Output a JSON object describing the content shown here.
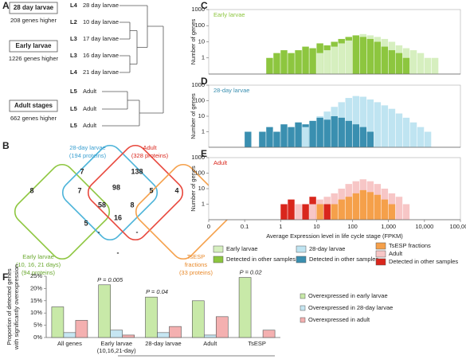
{
  "panel_a": {
    "label": "A",
    "groups": [
      {
        "title": "28 day larvae",
        "note": "208 genes higher"
      },
      {
        "title": "Early larvae",
        "note": "1226 genes higher"
      },
      {
        "title": "Adult stages",
        "note": "662 genes higher"
      }
    ],
    "leaves": [
      {
        "level": "L4",
        "name": "28 day larvae"
      },
      {
        "level": "L2",
        "name": "10 day larvae"
      },
      {
        "level": "L3",
        "name": "17 day larvae"
      },
      {
        "level": "L3",
        "name": "16 day larvae"
      },
      {
        "level": "L4",
        "name": "21 day larvae"
      },
      {
        "level": "L5",
        "name": "Adult"
      },
      {
        "level": "L5",
        "name": "Adult"
      },
      {
        "level": "L5",
        "name": "Adult"
      }
    ]
  },
  "panel_b": {
    "label": "B",
    "sets": [
      {
        "lines": [
          "28-day larvae",
          "(194 proteins)"
        ]
      },
      {
        "lines": [
          "Adult",
          "(328 proteins)"
        ]
      },
      {
        "lines": [
          "Early larvae",
          "(10, 16, 21 days)",
          "(94 proteins)"
        ]
      },
      {
        "lines": [
          "TsESP",
          "fractions",
          "(33 proteins)"
        ]
      }
    ],
    "regions": [
      8,
      7,
      138,
      4,
      7,
      98,
      5,
      58,
      8,
      5,
      16,
      "-",
      "-",
      "-"
    ]
  },
  "chart_data": [
    {
      "type": "histogram",
      "panel": "C",
      "title": "Early larvae",
      "title_color": "#8dc63f",
      "ylabel": "Number of genes",
      "xscale": "log",
      "yscale": "log",
      "xlim": [
        0,
        100000
      ],
      "ylim": [
        0.1,
        1000
      ],
      "yticks": [
        1,
        10,
        100,
        1000
      ],
      "bins": [
        0.1,
        0.158,
        0.251,
        0.398,
        0.631,
        1,
        1.585,
        2.512,
        3.981,
        6.31,
        10,
        15.85,
        25.12,
        39.81,
        63.1,
        100,
        158.5,
        251.2,
        398.1,
        631,
        1000,
        1585,
        2512,
        3981,
        6310,
        10000,
        15849,
        25119,
        39811,
        63096,
        100000
      ],
      "series": [
        {
          "name": "Early larvae",
          "color": "#d6efbf",
          "values": [
            null,
            null,
            null,
            null,
            null,
            null,
            null,
            null,
            null,
            null,
            2,
            3,
            5,
            8,
            12,
            25,
            30,
            25,
            20,
            15,
            10,
            6,
            4,
            3,
            2,
            1,
            1,
            null,
            null,
            null
          ]
        },
        {
          "name": "Detected in other samples",
          "color": "#8dc63f",
          "values": [
            null,
            null,
            null,
            1,
            2,
            3,
            2,
            3,
            5,
            4,
            8,
            6,
            10,
            15,
            20,
            25,
            20,
            15,
            10,
            5,
            3,
            2,
            1,
            null,
            null,
            null,
            null,
            null,
            null,
            null
          ]
        }
      ]
    },
    {
      "type": "histogram",
      "panel": "D",
      "title": "28-day larvae",
      "title_color": "#3a8fb0",
      "ylabel": "Number of genes",
      "xscale": "log",
      "yscale": "log",
      "xlim": [
        0,
        100000
      ],
      "ylim": [
        0.1,
        1000
      ],
      "yticks": [
        1,
        10,
        100,
        1000
      ],
      "bins": [
        0.1,
        0.158,
        0.251,
        0.398,
        0.631,
        1,
        1.585,
        2.512,
        3.981,
        6.31,
        10,
        15.85,
        25.12,
        39.81,
        63.1,
        100,
        158.5,
        251.2,
        398.1,
        631,
        1000,
        1585,
        2512,
        3981,
        6310,
        10000,
        15849,
        25119,
        39811,
        63096,
        100000
      ],
      "series": [
        {
          "name": "28-day larvae",
          "color": "#bfe4f1",
          "values": [
            null,
            null,
            null,
            null,
            null,
            null,
            null,
            null,
            2,
            5,
            10,
            20,
            40,
            80,
            150,
            200,
            180,
            120,
            80,
            50,
            30,
            15,
            8,
            4,
            2,
            1,
            null,
            null,
            null,
            null
          ]
        },
        {
          "name": "Detected in other samples",
          "color": "#3a8fb0",
          "values": [
            1,
            null,
            1,
            2,
            1,
            3,
            2,
            4,
            3,
            5,
            8,
            6,
            10,
            8,
            5,
            3,
            2,
            1,
            null,
            null,
            null,
            null,
            null,
            null,
            null,
            null,
            null,
            null,
            null,
            null
          ]
        }
      ]
    },
    {
      "type": "histogram",
      "panel": "E",
      "title": "Adult",
      "title_color": "#d9261c",
      "ylabel": "Number of genes",
      "xlabel": "Average Expression level in life cycle stage (FPKM)",
      "xscale": "log",
      "yscale": "log",
      "xlim": [
        0,
        100000
      ],
      "ylim": [
        0.1,
        1000
      ],
      "yticks": [
        1,
        10,
        100,
        1000
      ],
      "xticks": [
        {
          "value": 0,
          "label": "0"
        },
        0.1,
        1,
        10,
        100,
        {
          "value": 1000,
          "label": "1,000"
        },
        {
          "value": 10000,
          "label": "10,000"
        },
        {
          "value": 100000,
          "label": "100,000"
        }
      ],
      "bins": [
        0.1,
        0.158,
        0.251,
        0.398,
        0.631,
        1,
        1.585,
        2.512,
        3.981,
        6.31,
        10,
        15.85,
        25.12,
        39.81,
        63.1,
        100,
        158.5,
        251.2,
        398.1,
        631,
        1000,
        1585,
        2512,
        3981,
        6310,
        10000,
        15849,
        25119,
        39811,
        63096,
        100000
      ],
      "series": [
        {
          "name": "TsESP fractions",
          "color": "#f5a04a",
          "values": [
            null,
            null,
            null,
            null,
            null,
            null,
            null,
            null,
            null,
            null,
            1,
            null,
            1,
            2,
            3,
            5,
            8,
            6,
            4,
            2,
            1,
            null,
            null,
            null,
            null,
            null,
            null,
            null,
            null,
            null
          ]
        },
        {
          "name": "Adult",
          "color": "#f7c6c6",
          "values": [
            null,
            null,
            null,
            null,
            null,
            null,
            null,
            1,
            null,
            1,
            2,
            3,
            5,
            10,
            20,
            30,
            40,
            30,
            20,
            10,
            5,
            3,
            1,
            null,
            null,
            null,
            null,
            null,
            null,
            null
          ]
        },
        {
          "name": "Detected in other samples",
          "color": "#d9261c",
          "values": [
            null,
            null,
            null,
            null,
            null,
            1,
            2,
            null,
            1,
            3,
            null,
            1,
            null,
            null,
            null,
            null,
            null,
            null,
            null,
            null,
            null,
            null,
            null,
            null,
            null,
            null,
            null,
            null,
            null,
            null
          ]
        }
      ]
    },
    {
      "type": "bar",
      "panel": "F",
      "ylabel": [
        "Proportion of detected genes",
        "with significantly overexpression"
      ],
      "categories": [
        "All genes",
        "Early larvae\n(10,16,21-day)",
        "28-day larvae",
        "Adult",
        "TsESP"
      ],
      "ylim": [
        0,
        25
      ],
      "yticks": [
        {
          "value": 0,
          "label": "0%"
        },
        {
          "value": 5,
          "label": "5%"
        },
        {
          "value": 10,
          "label": "10%"
        },
        {
          "value": 15,
          "label": "15%"
        },
        {
          "value": 20,
          "label": "20%"
        },
        {
          "value": 25,
          "label": "25%"
        }
      ],
      "series": [
        {
          "name": "Overexpressed in early larvae",
          "color": "#c8e9a8",
          "values": [
            12.5,
            21.5,
            16.5,
            15,
            24.5
          ]
        },
        {
          "name": "Overexpressed in 28-day larvae",
          "color": "#c6e6f2",
          "values": [
            2,
            3,
            2,
            1,
            null
          ]
        },
        {
          "name": "Overexpressed in adult",
          "color": "#f4b0b0",
          "values": [
            7,
            1,
            4.5,
            8.5,
            3
          ]
        }
      ],
      "annotations": [
        {
          "label": "P = 0.005",
          "category": "Early larvae\n(10,16,21-day)"
        },
        {
          "label": "P = 0.04",
          "category": "28-day larvae"
        },
        {
          "label": "P = 0.02",
          "category": "TsESP"
        }
      ]
    }
  ]
}
